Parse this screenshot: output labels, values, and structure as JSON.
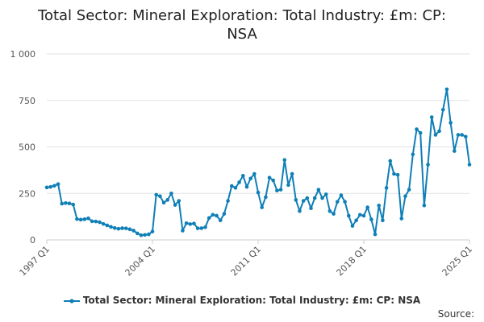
{
  "chart_data": {
    "type": "line",
    "title_lines": [
      "Total Sector: Mineral Exploration: Total Industry: £m: CP:",
      "NSA"
    ],
    "xlabel": "",
    "ylabel": "",
    "ylim": [
      0,
      1000
    ],
    "yticks": [
      0,
      250,
      500,
      750,
      1000
    ],
    "ytick_labels": [
      "0",
      "250",
      "500",
      "750",
      "1 000"
    ],
    "xtick_labels": [
      "1997 Q1",
      "2004 Q1",
      "2011 Q1",
      "2018 Q1",
      "2025 Q1"
    ],
    "grid": true,
    "legend_position": "bottom",
    "color": "#0f7fb6",
    "series": [
      {
        "name": "Total Sector: Mineral Exploration: Total Industry: £m: CP: NSA",
        "x": [
          "1997 Q1",
          "1997 Q2",
          "1997 Q3",
          "1997 Q4",
          "1998 Q1",
          "1998 Q2",
          "1998 Q3",
          "1998 Q4",
          "1999 Q1",
          "1999 Q2",
          "1999 Q3",
          "1999 Q4",
          "2000 Q1",
          "2000 Q2",
          "2000 Q3",
          "2000 Q4",
          "2001 Q1",
          "2001 Q2",
          "2001 Q3",
          "2001 Q4",
          "2002 Q1",
          "2002 Q2",
          "2002 Q3",
          "2002 Q4",
          "2003 Q1",
          "2003 Q2",
          "2003 Q3",
          "2003 Q4",
          "2004 Q1",
          "2004 Q2",
          "2004 Q3",
          "2004 Q4",
          "2005 Q1",
          "2005 Q2",
          "2005 Q3",
          "2005 Q4",
          "2006 Q1",
          "2006 Q2",
          "2006 Q3",
          "2006 Q4",
          "2007 Q1",
          "2007 Q2",
          "2007 Q3",
          "2007 Q4",
          "2008 Q1",
          "2008 Q2",
          "2008 Q3",
          "2008 Q4",
          "2009 Q1",
          "2009 Q2",
          "2009 Q3",
          "2009 Q4",
          "2010 Q1",
          "2010 Q2",
          "2010 Q3",
          "2010 Q4",
          "2011 Q1",
          "2011 Q2",
          "2011 Q3",
          "2011 Q4",
          "2012 Q1",
          "2012 Q2",
          "2012 Q3",
          "2012 Q4",
          "2013 Q1",
          "2013 Q2",
          "2013 Q3",
          "2013 Q4",
          "2014 Q1",
          "2014 Q2",
          "2014 Q3",
          "2014 Q4",
          "2015 Q1",
          "2015 Q2",
          "2015 Q3",
          "2015 Q4",
          "2016 Q1",
          "2016 Q2",
          "2016 Q3",
          "2016 Q4",
          "2017 Q1",
          "2017 Q2",
          "2017 Q3",
          "2017 Q4",
          "2018 Q1",
          "2018 Q2",
          "2018 Q3",
          "2018 Q4",
          "2019 Q1",
          "2019 Q2",
          "2019 Q3",
          "2019 Q4",
          "2020 Q1",
          "2020 Q2",
          "2020 Q3",
          "2020 Q4",
          "2021 Q1",
          "2021 Q2",
          "2021 Q3",
          "2021 Q4",
          "2022 Q1",
          "2022 Q2",
          "2022 Q3",
          "2022 Q4",
          "2023 Q1",
          "2023 Q2",
          "2023 Q3",
          "2023 Q4",
          "2024 Q1",
          "2024 Q2",
          "2024 Q3",
          "2024 Q4",
          "2025 Q1"
        ],
        "values": [
          282,
          285,
          291,
          300,
          195,
          198,
          196,
          190,
          112,
          109,
          111,
          116,
          100,
          99,
          95,
          86,
          78,
          70,
          64,
          60,
          63,
          62,
          57,
          50,
          35,
          25,
          27,
          30,
          45,
          243,
          235,
          200,
          215,
          250,
          188,
          210,
          50,
          90,
          85,
          88,
          62,
          63,
          68,
          118,
          135,
          130,
          105,
          140,
          210,
          290,
          280,
          310,
          345,
          285,
          330,
          355,
          255,
          175,
          230,
          335,
          320,
          265,
          270,
          430,
          295,
          355,
          215,
          155,
          210,
          225,
          170,
          225,
          270,
          225,
          245,
          155,
          140,
          205,
          240,
          205,
          130,
          75,
          105,
          135,
          130,
          175,
          110,
          30,
          185,
          105,
          280,
          425,
          355,
          350,
          115,
          235,
          270,
          460,
          595,
          575,
          185,
          405,
          660,
          565,
          585,
          700,
          810,
          630,
          478,
          565,
          565,
          555,
          405
        ]
      }
    ]
  },
  "legend": {
    "label": "Total Sector: Mineral Exploration: Total Industry: £m: CP: NSA"
  },
  "footer": {
    "source_label": "Source:"
  }
}
